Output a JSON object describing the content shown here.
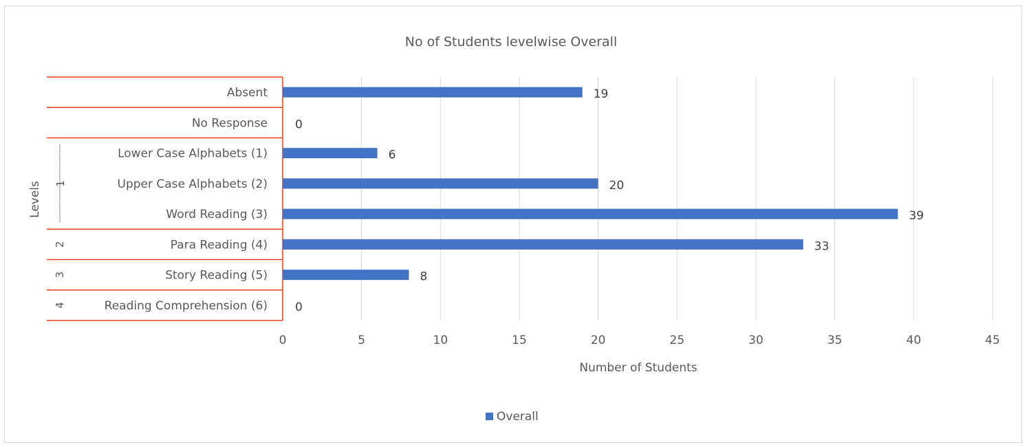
{
  "chart_data": {
    "type": "bar",
    "orientation": "horizontal",
    "title": "No of Students levelwise Overall",
    "xlabel": "Number of Students",
    "ylabel": "Levels",
    "xlim": [
      0,
      45
    ],
    "xticks": [
      "0",
      "5",
      "10",
      "15",
      "20",
      "25",
      "30",
      "35",
      "40",
      "45"
    ],
    "grid": "vertical",
    "legend_position": "bottom",
    "categories": [
      "Absent",
      "No Response",
      "Lower Case Alphabets (1)",
      "Upper Case Alphabets (2)",
      "Word Reading (3)",
      "Para Reading (4)",
      "Story Reading (5)",
      "Reading Comprehension (6)"
    ],
    "groups": [
      {
        "label": "",
        "categories": [
          "Absent"
        ]
      },
      {
        "label": "",
        "categories": [
          "No Response"
        ]
      },
      {
        "label": "1",
        "categories": [
          "Lower Case Alphabets (1)",
          "Upper Case Alphabets (2)",
          "Word Reading (3)"
        ]
      },
      {
        "label": "2",
        "categories": [
          "Para Reading (4)"
        ]
      },
      {
        "label": "3",
        "categories": [
          "Story Reading (5)"
        ]
      },
      {
        "label": "4",
        "categories": [
          "Reading Comprehension (6)"
        ]
      }
    ],
    "series": [
      {
        "name": "Overall",
        "color": "#4472c4",
        "values": [
          19,
          0,
          6,
          20,
          39,
          33,
          8,
          0
        ]
      }
    ],
    "label_rows_outline_color": "#e8401c"
  }
}
